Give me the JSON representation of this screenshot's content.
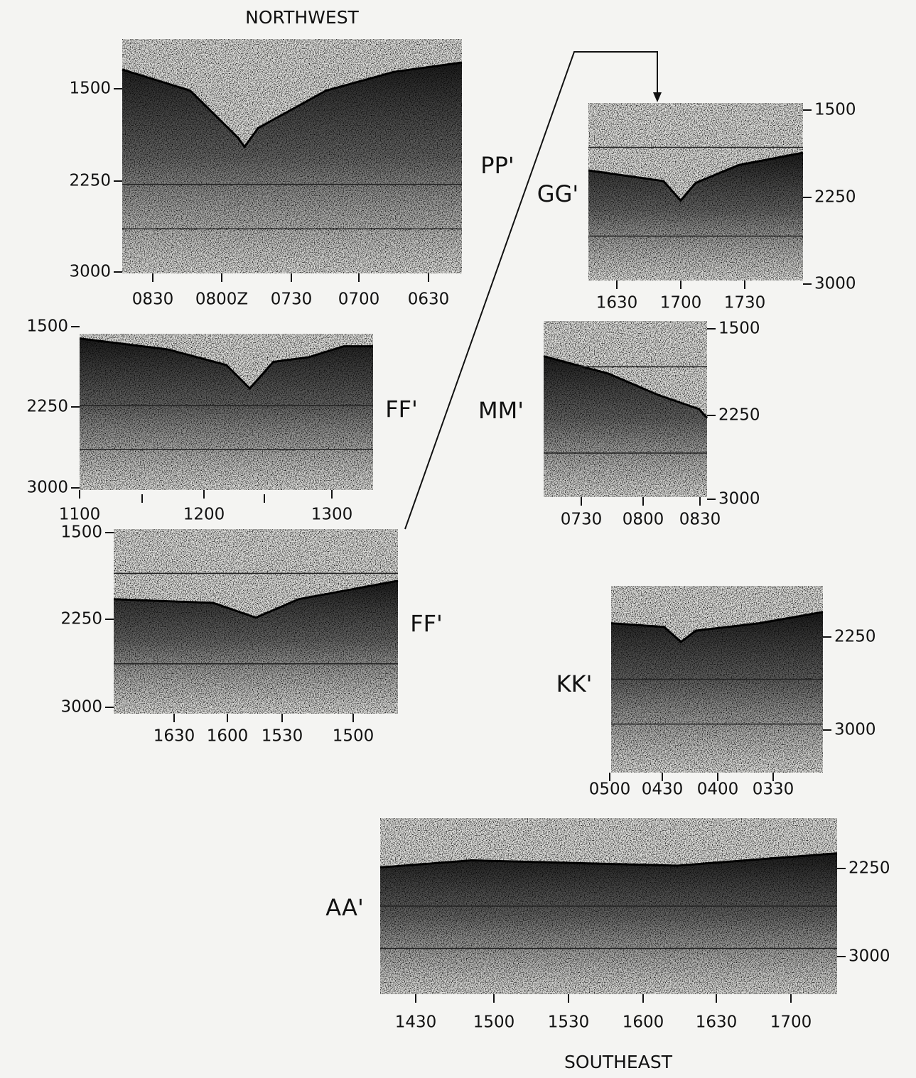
{
  "header": {
    "title": "NORTHWEST"
  },
  "footer": {
    "title": "SOUTHEAST"
  },
  "panels": [
    {
      "label": "PP'",
      "y_ticks": [
        "1500",
        "2250",
        "3000"
      ],
      "x_ticks": [
        "0830",
        "0800Z",
        "0730",
        "0700",
        "0630"
      ]
    },
    {
      "label": "FF'",
      "y_ticks": [
        "1500",
        "2250",
        "3000"
      ],
      "x_ticks": [
        "1100",
        "1200",
        "1300"
      ]
    },
    {
      "label": "FF'",
      "y_ticks": [
        "1500",
        "2250",
        "3000"
      ],
      "x_ticks": [
        "1630",
        "1600",
        "1530",
        "1500"
      ]
    },
    {
      "label": "GG'",
      "y_ticks": [
        "1500",
        "2250",
        "3000"
      ],
      "x_ticks": [
        "1630",
        "1700",
        "1730"
      ]
    },
    {
      "label": "MM'",
      "y_ticks": [
        "1500",
        "2250",
        "3000"
      ],
      "x_ticks": [
        "0730",
        "0800",
        "0830"
      ]
    },
    {
      "label": "KK'",
      "y_ticks": [
        "2250",
        "3000"
      ],
      "x_ticks": [
        "0500",
        "0430",
        "0400",
        "0330"
      ]
    },
    {
      "label": "AA'",
      "y_ticks": [
        "2250",
        "3000"
      ],
      "x_ticks": [
        "1430",
        "1500",
        "1530",
        "1600",
        "1630",
        "1700"
      ]
    }
  ]
}
